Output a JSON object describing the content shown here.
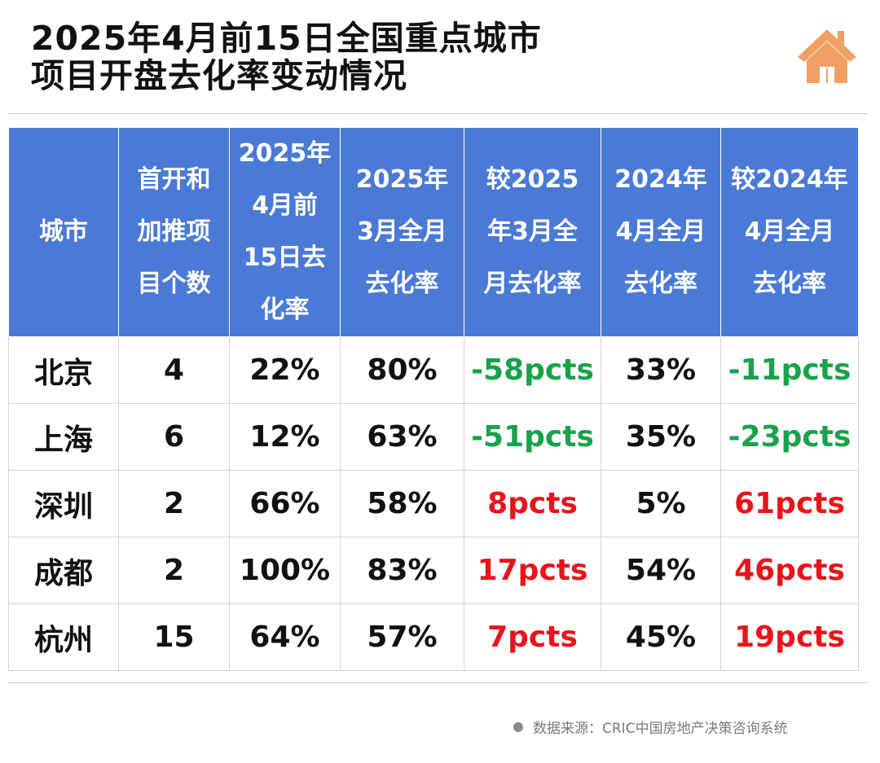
{
  "title": {
    "line1": "2025年4月前15日全国重点城市",
    "line2": "项目开盘去化率变动情况"
  },
  "icon": {
    "name": "house-icon",
    "color": "#f0a064"
  },
  "colors": {
    "header_bg": "#4a7ad6",
    "increase": "#e8141b",
    "decrease": "#19a24a"
  },
  "table": {
    "headers": [
      "城市",
      "首开和\n加推项\n目个数",
      "2025年\n4月前\n15日去\n化率",
      "2025年\n3月全月\n去化率",
      "较2025\n年3月全\n月去化率",
      "2024年\n4月全月\n去化率",
      "较2024年\n4月全月\n去化率"
    ],
    "rows": [
      {
        "city": "北京",
        "projects": "4",
        "rate_apr15_2025": "22%",
        "rate_mar_2025": "80%",
        "vs_mar_2025": "-58pcts",
        "vs_mar_2025_dir": "neg",
        "rate_apr_2024": "33%",
        "vs_apr_2024": "-11pcts",
        "vs_apr_2024_dir": "neg"
      },
      {
        "city": "上海",
        "projects": "6",
        "rate_apr15_2025": "12%",
        "rate_mar_2025": "63%",
        "vs_mar_2025": "-51pcts",
        "vs_mar_2025_dir": "neg",
        "rate_apr_2024": "35%",
        "vs_apr_2024": "-23pcts",
        "vs_apr_2024_dir": "neg"
      },
      {
        "city": "深圳",
        "projects": "2",
        "rate_apr15_2025": "66%",
        "rate_mar_2025": "58%",
        "vs_mar_2025": "8pcts",
        "vs_mar_2025_dir": "pos",
        "rate_apr_2024": "5%",
        "vs_apr_2024": "61pcts",
        "vs_apr_2024_dir": "pos"
      },
      {
        "city": "成都",
        "projects": "2",
        "rate_apr15_2025": "100%",
        "rate_mar_2025": "83%",
        "vs_mar_2025": "17pcts",
        "vs_mar_2025_dir": "pos",
        "rate_apr_2024": "54%",
        "vs_apr_2024": "46pcts",
        "vs_apr_2024_dir": "pos"
      },
      {
        "city": "杭州",
        "projects": "15",
        "rate_apr15_2025": "64%",
        "rate_mar_2025": "57%",
        "vs_mar_2025": "7pcts",
        "vs_mar_2025_dir": "pos",
        "rate_apr_2024": "45%",
        "vs_apr_2024": "19pcts",
        "vs_apr_2024_dir": "pos"
      }
    ]
  },
  "source": "数据来源：CRIC中国房地产决策咨询系统"
}
